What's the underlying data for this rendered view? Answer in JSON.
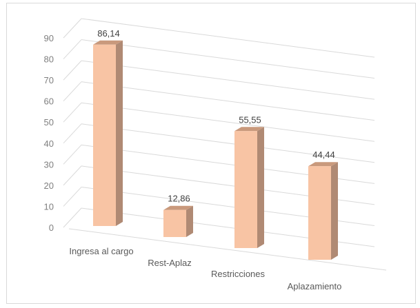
{
  "chart_data": {
    "type": "bar",
    "style": "3d-column",
    "title": "",
    "xlabel": "",
    "ylabel": "",
    "categories": [
      "Ingresa al cargo",
      "Rest-Aplaz",
      "Restricciones",
      "Aplazamiento"
    ],
    "values": [
      86.14,
      12.86,
      55.55,
      44.44
    ],
    "data_labels": [
      "86,14",
      "12,86",
      "55,55",
      "44,44"
    ],
    "y_ticks": [
      "0",
      "10",
      "20",
      "30",
      "40",
      "50",
      "60",
      "70",
      "80",
      "90"
    ],
    "ylim": [
      0,
      90
    ],
    "grid": true,
    "legend": "none",
    "colors": {
      "bar_front": "#f8c4a4",
      "bar_side": "#b08a74",
      "bar_top": "#c9997c",
      "grid": "#d9d9d9",
      "frame": "#d9d9d9"
    }
  }
}
